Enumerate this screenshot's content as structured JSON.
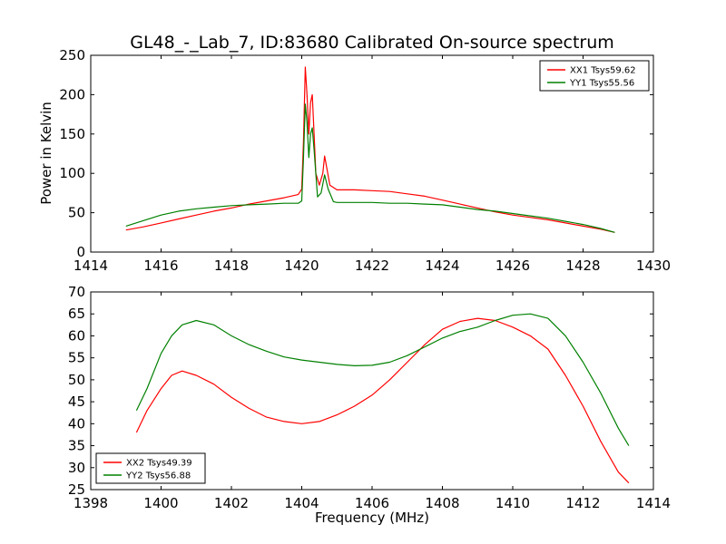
{
  "title": "GL48_-_Lab_7, ID:83680 Calibrated On-source spectrum",
  "chart_data": [
    {
      "type": "line",
      "xlabel": "",
      "ylabel": "Power in Kelvin",
      "xlim": [
        1414,
        1430
      ],
      "ylim": [
        0,
        250
      ],
      "xticks": [
        1414,
        1416,
        1418,
        1420,
        1422,
        1424,
        1426,
        1428,
        1430
      ],
      "yticks": [
        0,
        50,
        100,
        150,
        200,
        250
      ],
      "legend_position": "top-right",
      "series": [
        {
          "name": "XX1 Tsys59.62",
          "color": "#ff0000",
          "points": [
            [
              1415.0,
              28
            ],
            [
              1415.5,
              32
            ],
            [
              1416.0,
              37
            ],
            [
              1416.5,
              42
            ],
            [
              1417.0,
              47
            ],
            [
              1417.5,
              52
            ],
            [
              1418.0,
              56
            ],
            [
              1418.5,
              61
            ],
            [
              1419.0,
              65
            ],
            [
              1419.5,
              69
            ],
            [
              1419.9,
              73
            ],
            [
              1420.0,
              80
            ],
            [
              1420.05,
              140
            ],
            [
              1420.1,
              235
            ],
            [
              1420.15,
              200
            ],
            [
              1420.2,
              150
            ],
            [
              1420.25,
              190
            ],
            [
              1420.3,
              200
            ],
            [
              1420.35,
              150
            ],
            [
              1420.4,
              100
            ],
            [
              1420.5,
              85
            ],
            [
              1420.6,
              100
            ],
            [
              1420.65,
              122
            ],
            [
              1420.7,
              110
            ],
            [
              1420.8,
              85
            ],
            [
              1421.0,
              79
            ],
            [
              1421.5,
              79
            ],
            [
              1422.0,
              78
            ],
            [
              1422.5,
              77
            ],
            [
              1423.0,
              74
            ],
            [
              1423.5,
              71
            ],
            [
              1424.0,
              66
            ],
            [
              1424.5,
              61
            ],
            [
              1425.0,
              56
            ],
            [
              1425.5,
              51
            ],
            [
              1426.0,
              47
            ],
            [
              1426.5,
              44
            ],
            [
              1427.0,
              41
            ],
            [
              1427.5,
              37
            ],
            [
              1428.0,
              33
            ],
            [
              1428.5,
              29
            ],
            [
              1428.9,
              25
            ]
          ]
        },
        {
          "name": "YY1 Tsys55.56",
          "color": "#008000",
          "points": [
            [
              1415.0,
              33
            ],
            [
              1415.5,
              40
            ],
            [
              1416.0,
              47
            ],
            [
              1416.5,
              52
            ],
            [
              1417.0,
              55
            ],
            [
              1417.5,
              57
            ],
            [
              1418.0,
              59
            ],
            [
              1418.5,
              60
            ],
            [
              1419.0,
              61
            ],
            [
              1419.5,
              62
            ],
            [
              1419.9,
              62
            ],
            [
              1420.0,
              65
            ],
            [
              1420.05,
              120
            ],
            [
              1420.1,
              188
            ],
            [
              1420.15,
              165
            ],
            [
              1420.2,
              120
            ],
            [
              1420.25,
              150
            ],
            [
              1420.3,
              158
            ],
            [
              1420.35,
              130
            ],
            [
              1420.45,
              70
            ],
            [
              1420.55,
              75
            ],
            [
              1420.65,
              98
            ],
            [
              1420.75,
              80
            ],
            [
              1420.9,
              64
            ],
            [
              1421.0,
              63
            ],
            [
              1422.0,
              63
            ],
            [
              1422.5,
              62
            ],
            [
              1423.0,
              62
            ],
            [
              1423.5,
              61
            ],
            [
              1424.0,
              60
            ],
            [
              1424.5,
              57
            ],
            [
              1425.0,
              54
            ],
            [
              1425.5,
              52
            ],
            [
              1426.0,
              49
            ],
            [
              1426.5,
              46
            ],
            [
              1427.0,
              43
            ],
            [
              1427.5,
              39
            ],
            [
              1428.0,
              35
            ],
            [
              1428.5,
              30
            ],
            [
              1428.9,
              25
            ]
          ]
        }
      ]
    },
    {
      "type": "line",
      "xlabel": "Frequency (MHz)",
      "ylabel": "",
      "xlim": [
        1398,
        1414
      ],
      "ylim": [
        25,
        70
      ],
      "xticks": [
        1398,
        1400,
        1402,
        1404,
        1406,
        1408,
        1410,
        1412,
        1414
      ],
      "yticks": [
        25,
        30,
        35,
        40,
        45,
        50,
        55,
        60,
        65,
        70
      ],
      "legend_position": "bottom-left",
      "series": [
        {
          "name": "XX2 Tsys49.39",
          "color": "#ff0000",
          "points": [
            [
              1399.3,
              38
            ],
            [
              1399.6,
              43
            ],
            [
              1400.0,
              48
            ],
            [
              1400.3,
              51
            ],
            [
              1400.6,
              52
            ],
            [
              1401.0,
              51
            ],
            [
              1401.5,
              49
            ],
            [
              1402.0,
              46
            ],
            [
              1402.5,
              43.5
            ],
            [
              1403.0,
              41.5
            ],
            [
              1403.5,
              40.5
            ],
            [
              1404.0,
              40
            ],
            [
              1404.5,
              40.5
            ],
            [
              1405.0,
              42
            ],
            [
              1405.5,
              44
            ],
            [
              1406.0,
              46.5
            ],
            [
              1406.5,
              50
            ],
            [
              1407.0,
              54
            ],
            [
              1407.5,
              58
            ],
            [
              1408.0,
              61.5
            ],
            [
              1408.5,
              63.3
            ],
            [
              1409.0,
              64
            ],
            [
              1409.5,
              63.5
            ],
            [
              1410.0,
              62
            ],
            [
              1410.5,
              60
            ],
            [
              1411.0,
              57
            ],
            [
              1411.5,
              51
            ],
            [
              1412.0,
              44
            ],
            [
              1412.5,
              36
            ],
            [
              1413.0,
              29
            ],
            [
              1413.3,
              26.5
            ]
          ]
        },
        {
          "name": "YY2 Tsys56.88",
          "color": "#008000",
          "points": [
            [
              1399.3,
              43
            ],
            [
              1399.6,
              48
            ],
            [
              1400.0,
              56
            ],
            [
              1400.3,
              60
            ],
            [
              1400.6,
              62.5
            ],
            [
              1401.0,
              63.5
            ],
            [
              1401.5,
              62.5
            ],
            [
              1402.0,
              60
            ],
            [
              1402.5,
              58
            ],
            [
              1403.0,
              56.5
            ],
            [
              1403.5,
              55.2
            ],
            [
              1404.0,
              54.5
            ],
            [
              1404.5,
              54
            ],
            [
              1405.0,
              53.5
            ],
            [
              1405.5,
              53.2
            ],
            [
              1406.0,
              53.3
            ],
            [
              1406.5,
              54
            ],
            [
              1407.0,
              55.5
            ],
            [
              1407.5,
              57.5
            ],
            [
              1408.0,
              59.5
            ],
            [
              1408.5,
              61
            ],
            [
              1409.0,
              62
            ],
            [
              1409.5,
              63.5
            ],
            [
              1410.0,
              64.7
            ],
            [
              1410.5,
              65
            ],
            [
              1411.0,
              64
            ],
            [
              1411.5,
              60
            ],
            [
              1412.0,
              54
            ],
            [
              1412.5,
              47
            ],
            [
              1413.0,
              39
            ],
            [
              1413.3,
              35
            ]
          ]
        }
      ]
    }
  ]
}
